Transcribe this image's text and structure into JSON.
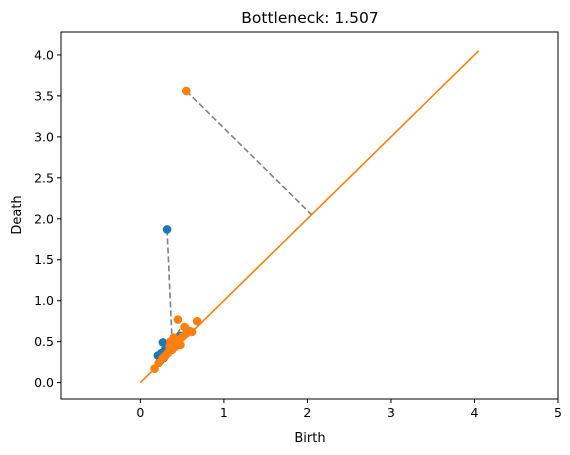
{
  "chart_data": {
    "type": "scatter",
    "title": "Bottleneck: 1.507",
    "xlabel": "Birth",
    "ylabel": "Death",
    "xlim": [
      -0.95,
      5.0
    ],
    "ylim": [
      -0.2,
      4.28
    ],
    "grid": false,
    "x_ticks": [
      "0",
      "1",
      "2",
      "3",
      "4",
      "5"
    ],
    "x_tick_values": [
      0,
      1,
      2,
      3,
      4,
      5
    ],
    "y_ticks": [
      "0.0",
      "0.5",
      "1.0",
      "1.5",
      "2.0",
      "2.5",
      "3.0",
      "3.5",
      "4.0"
    ],
    "y_tick_values": [
      0,
      0.5,
      1.0,
      1.5,
      2.0,
      2.5,
      3.0,
      3.5,
      4.0
    ],
    "series": [
      {
        "color": "#1f77b4",
        "points": [
          [
            0.32,
            1.87
          ],
          [
            0.27,
            0.49
          ],
          [
            0.21,
            0.33
          ],
          [
            0.25,
            0.36
          ],
          [
            0.3,
            0.41
          ],
          [
            0.35,
            0.45
          ],
          [
            0.38,
            0.5
          ],
          [
            0.42,
            0.52
          ],
          [
            0.45,
            0.55
          ],
          [
            0.28,
            0.3
          ],
          [
            0.33,
            0.38
          ],
          [
            0.36,
            0.42
          ],
          [
            0.4,
            0.47
          ],
          [
            0.24,
            0.27
          ],
          [
            0.48,
            0.57
          ]
        ]
      },
      {
        "color": "#ff7f0e",
        "points": [
          [
            0.55,
            3.56
          ],
          [
            0.68,
            0.75
          ],
          [
            0.45,
            0.77
          ],
          [
            0.53,
            0.68
          ],
          [
            0.59,
            0.63
          ],
          [
            0.62,
            0.62
          ],
          [
            0.4,
            0.55
          ],
          [
            0.44,
            0.5
          ],
          [
            0.48,
            0.46
          ],
          [
            0.35,
            0.44
          ],
          [
            0.38,
            0.4
          ],
          [
            0.33,
            0.36
          ],
          [
            0.3,
            0.33
          ],
          [
            0.27,
            0.3
          ],
          [
            0.17,
            0.17
          ],
          [
            0.22,
            0.24
          ],
          [
            0.5,
            0.56
          ],
          [
            0.36,
            0.5
          ],
          [
            0.42,
            0.44
          ],
          [
            0.55,
            0.6
          ]
        ]
      }
    ],
    "diagonal": {
      "color": "#ff7f0e",
      "from": [
        0,
        0
      ],
      "to": [
        4.05,
        4.05
      ]
    },
    "matchings": [
      {
        "from": [
          0.55,
          3.56
        ],
        "to": [
          2.05,
          2.05
        ],
        "color": "#808080",
        "style": "dashed"
      },
      {
        "from": [
          0.32,
          1.87
        ],
        "to": [
          0.38,
          0.5
        ],
        "color": "#808080",
        "style": "dashed"
      },
      {
        "from": [
          0.38,
          0.5
        ],
        "to": [
          0.48,
          0.66
        ],
        "color": "#808080",
        "style": "dashed"
      },
      {
        "from": [
          0.27,
          0.49
        ],
        "to": [
          0.35,
          0.44
        ],
        "color": "#808080",
        "style": "dashed"
      }
    ]
  }
}
